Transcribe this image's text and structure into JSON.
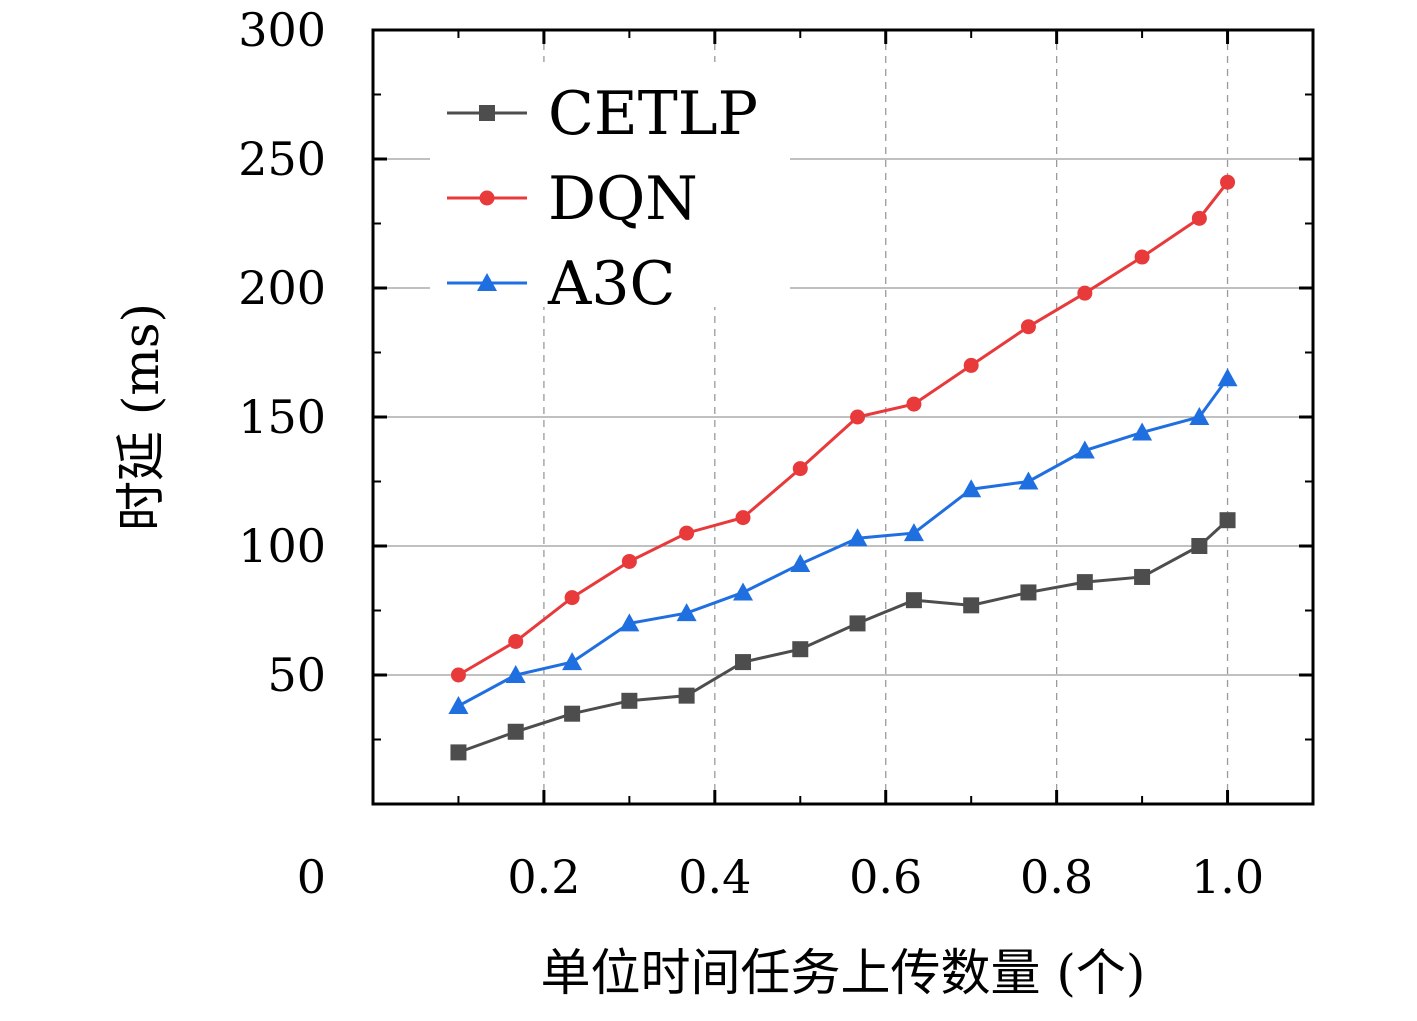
{
  "chart_data": {
    "type": "line",
    "xlabel": "单位时间任务上传数量 (个)",
    "ylabel": "时延 (ms)",
    "xlim": [
      0,
      1.1
    ],
    "ylim": [
      0,
      300
    ],
    "origin_label": "0",
    "x_ticks": [
      "0.2",
      "0.4",
      "0.6",
      "0.8",
      "1.0"
    ],
    "y_ticks": [
      "50",
      "100",
      "150",
      "200",
      "250",
      "300"
    ],
    "grid": true,
    "legend_position": "top-left",
    "x": [
      0.1,
      0.167,
      0.233,
      0.3,
      0.367,
      0.433,
      0.5,
      0.567,
      0.633,
      0.7,
      0.767,
      0.833,
      0.9,
      0.967,
      1.0
    ],
    "series": [
      {
        "name": "CETLP",
        "color": "#4d4d4d",
        "marker": "square",
        "x": [
          0.1,
          0.167,
          0.233,
          0.3,
          0.367,
          0.433,
          0.5,
          0.567,
          0.633,
          0.7,
          0.767,
          0.833,
          0.9,
          0.967,
          1.0
        ],
        "values": [
          20,
          28,
          35,
          40,
          42,
          55,
          60,
          70,
          79,
          77,
          82,
          86,
          88,
          100,
          110
        ]
      },
      {
        "name": "DQN",
        "color": "#e8393b",
        "marker": "circle",
        "x": [
          0.1,
          0.167,
          0.233,
          0.3,
          0.367,
          0.433,
          0.5,
          0.567,
          0.633,
          0.7,
          0.767,
          0.833,
          0.9,
          0.967,
          1.0
        ],
        "values": [
          50,
          63,
          80,
          94,
          105,
          111,
          130,
          150,
          155,
          170,
          185,
          198,
          212,
          227,
          241
        ]
      },
      {
        "name": "A3C",
        "color": "#1f6fe0",
        "marker": "triangle",
        "x": [
          0.1,
          0.167,
          0.233,
          0.3,
          0.367,
          0.433,
          0.5,
          0.567,
          0.633,
          0.7,
          0.767,
          0.833,
          0.9,
          0.967,
          1.0
        ],
        "values": [
          38,
          50,
          55,
          70,
          74,
          82,
          93,
          103,
          105,
          122,
          125,
          137,
          144,
          150,
          165
        ]
      }
    ]
  }
}
